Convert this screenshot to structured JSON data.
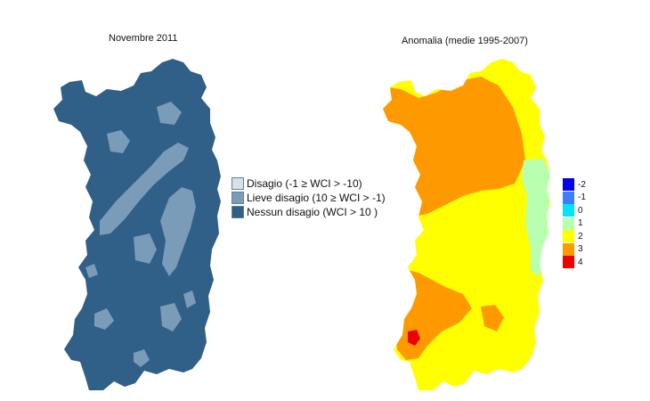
{
  "left_map": {
    "title": "Novembre 2011",
    "legend": [
      {
        "label": "Disagio (-1 ≥ WCI > -10)",
        "color": "#d4e0ea"
      },
      {
        "label": "Lieve disagio (10 ≥ WCI > -1)",
        "color": "#7b9cb8"
      },
      {
        "label": "Nessun disagio (WCI > 10 )",
        "color": "#305f87"
      }
    ]
  },
  "right_map": {
    "title": "Anomalia (medie 1995-2007)",
    "legend": [
      {
        "label": "-2",
        "color": "#0000ee"
      },
      {
        "label": "-1",
        "color": "#3d7dff"
      },
      {
        "label": "0",
        "color": "#00e5ff"
      },
      {
        "label": "1",
        "color": "#b8ffb0"
      },
      {
        "label": "2",
        "color": "#ffff00"
      },
      {
        "label": "3",
        "color": "#ff9900"
      },
      {
        "label": "4",
        "color": "#ee0000"
      }
    ]
  }
}
